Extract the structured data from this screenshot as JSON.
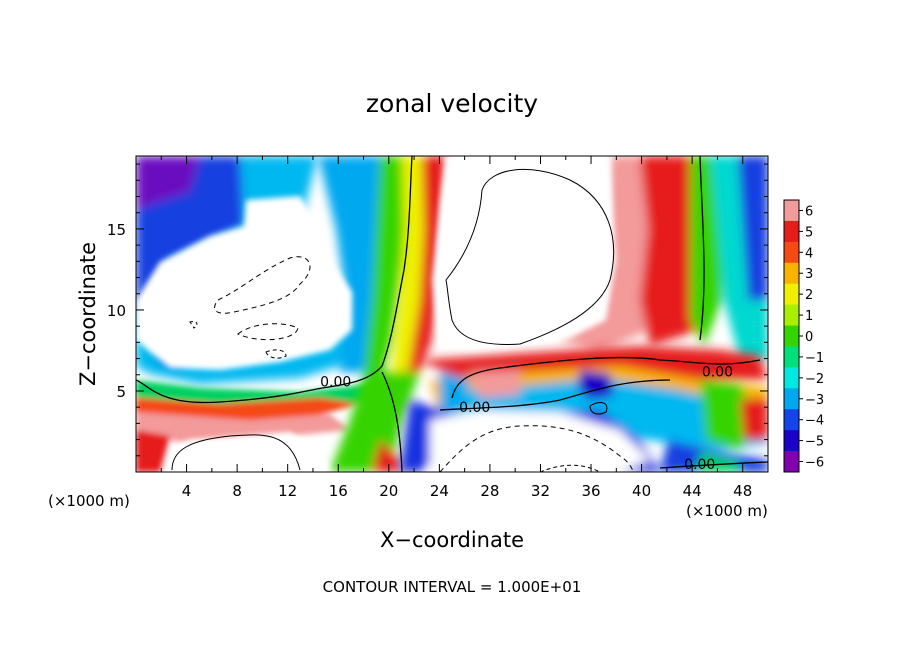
{
  "chart_data": {
    "type": "heatmap",
    "title": "zonal velocity",
    "xlabel": "X−coordinate",
    "ylabel": "Z−coordinate",
    "x_unit_left": "(×1000 m)",
    "x_unit_right": "(×1000 m)",
    "xlim": [
      0,
      50
    ],
    "ylim": [
      0,
      19.5
    ],
    "x_ticks": [
      4,
      8,
      12,
      16,
      20,
      24,
      28,
      32,
      36,
      40,
      44,
      48
    ],
    "y_ticks": [
      5,
      10,
      15
    ],
    "footer": "CONTOUR INTERVAL = 1.000E+01",
    "colorbar": {
      "levels": [
        6,
        5,
        4,
        3,
        2,
        1,
        0,
        -1,
        -2,
        -3,
        -4,
        -5,
        -6
      ],
      "tick_labels": [
        "6",
        "5",
        "4",
        "3",
        "2",
        "1",
        "0",
        "−1",
        "−2",
        "−3",
        "−4",
        "−5",
        "−6"
      ],
      "colors": [
        "#f39a9a",
        "#e61b1b",
        "#f54a14",
        "#f7b300",
        "#eef000",
        "#a8f000",
        "#34d400",
        "#00e07a",
        "#00e8e0",
        "#00a8f0",
        "#1444ea",
        "#1a00c8",
        "#8000b0"
      ]
    },
    "contour_labels": [
      {
        "text": "0.00",
        "x": 15.8,
        "z": 5.6
      },
      {
        "text": "0.00",
        "x": 26.8,
        "z": 4.0
      },
      {
        "text": "0.00",
        "x": 46.0,
        "z": 6.2
      },
      {
        "text": "0.00",
        "x": 44.6,
        "z": 0.5
      }
    ]
  }
}
